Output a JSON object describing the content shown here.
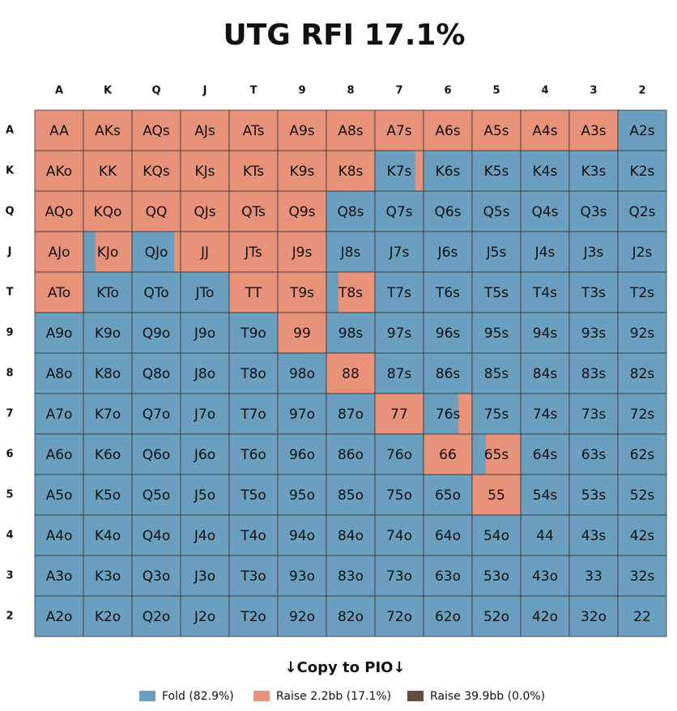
{
  "title": "UTG RFI 17.1%",
  "columns": [
    "A",
    "K",
    "Q",
    "J",
    "T",
    "9",
    "8",
    "7",
    "6",
    "5",
    "4",
    "3",
    "2"
  ],
  "rows": [
    "A",
    "K",
    "Q",
    "J",
    "T",
    "9",
    "8",
    "7",
    "6",
    "5",
    "4",
    "3",
    "2"
  ],
  "hands": [
    [
      "AA",
      "AKs",
      "AQs",
      "AJs",
      "ATs",
      "A9s",
      "A8s",
      "A7s",
      "A6s",
      "A5s",
      "A4s",
      "A3s",
      "A2s"
    ],
    [
      "AKo",
      "KK",
      "KQs",
      "KJs",
      "KTs",
      "K9s",
      "K8s",
      "K7s",
      "K6s",
      "K5s",
      "K4s",
      "K3s",
      "K2s"
    ],
    [
      "AQo",
      "KQo",
      "QQ",
      "QJs",
      "QTs",
      "Q9s",
      "Q8s",
      "Q7s",
      "Q6s",
      "Q5s",
      "Q4s",
      "Q3s",
      "Q2s"
    ],
    [
      "AJo",
      "KJo",
      "QJo",
      "JJ",
      "JTs",
      "J9s",
      "J8s",
      "J7s",
      "J6s",
      "J5s",
      "J4s",
      "J3s",
      "J2s"
    ],
    [
      "ATo",
      "KTo",
      "QTo",
      "JTo",
      "TT",
      "T9s",
      "T8s",
      "T7s",
      "T6s",
      "T5s",
      "T4s",
      "T3s",
      "T2s"
    ],
    [
      "A9o",
      "K9o",
      "Q9o",
      "J9o",
      "T9o",
      "99",
      "98s",
      "97s",
      "96s",
      "95s",
      "94s",
      "93s",
      "92s"
    ],
    [
      "A8o",
      "K8o",
      "Q8o",
      "J8o",
      "T8o",
      "98o",
      "88",
      "87s",
      "86s",
      "85s",
      "84s",
      "83s",
      "82s"
    ],
    [
      "A7o",
      "K7o",
      "Q7o",
      "J7o",
      "T7o",
      "97o",
      "87o",
      "77",
      "76s",
      "75s",
      "74s",
      "73s",
      "72s"
    ],
    [
      "A6o",
      "K6o",
      "Q6o",
      "J6o",
      "T6o",
      "96o",
      "86o",
      "76o",
      "66",
      "65s",
      "64s",
      "63s",
      "62s"
    ],
    [
      "A5o",
      "K5o",
      "Q5o",
      "J5o",
      "T5o",
      "95o",
      "85o",
      "75o",
      "65o",
      "55",
      "54s",
      "53s",
      "52s"
    ],
    [
      "A4o",
      "K4o",
      "Q4o",
      "J4o",
      "T4o",
      "94o",
      "84o",
      "74o",
      "64o",
      "54o",
      "44",
      "43s",
      "42s"
    ],
    [
      "A3o",
      "K3o",
      "Q3o",
      "J3o",
      "T3o",
      "93o",
      "83o",
      "73o",
      "63o",
      "53o",
      "43o",
      "33",
      "32s"
    ],
    [
      "A2o",
      "K2o",
      "Q2o",
      "J2o",
      "T2o",
      "92o",
      "82o",
      "72o",
      "62o",
      "52o",
      "42o",
      "32o",
      "22"
    ]
  ],
  "raise": [
    [
      1,
      1,
      1,
      1,
      1,
      1,
      1,
      1,
      1,
      1,
      1,
      1,
      0
    ],
    [
      1,
      1,
      1,
      1,
      1,
      1,
      1,
      0.17,
      0,
      0,
      0,
      0,
      0
    ],
    [
      1,
      1,
      1,
      1,
      1,
      1,
      0,
      0,
      0,
      0,
      0,
      0,
      0
    ],
    [
      1,
      0.75,
      0.13,
      1,
      1,
      1,
      0,
      0,
      0,
      0,
      0,
      0,
      0
    ],
    [
      1,
      0,
      0,
      0,
      1,
      1,
      0.75,
      0,
      0,
      0,
      0,
      0,
      0
    ],
    [
      0,
      0,
      0,
      0,
      0,
      1,
      0,
      0,
      0,
      0,
      0,
      0,
      0
    ],
    [
      0,
      0,
      0,
      0,
      0,
      0,
      1,
      0,
      0,
      0,
      0,
      0,
      0
    ],
    [
      0,
      0,
      0,
      0,
      0,
      0,
      0,
      1,
      0.28,
      0,
      0,
      0,
      0
    ],
    [
      0,
      0,
      0,
      0,
      0,
      0,
      0,
      0,
      1,
      0.72,
      0,
      0,
      0
    ],
    [
      0,
      0,
      0,
      0,
      0,
      0,
      0,
      0,
      0,
      1,
      0,
      0,
      0
    ],
    [
      0,
      0,
      0,
      0,
      0,
      0,
      0,
      0,
      0,
      0,
      0,
      0,
      0
    ],
    [
      0,
      0,
      0,
      0,
      0,
      0,
      0,
      0,
      0,
      0,
      0,
      0,
      0
    ],
    [
      0,
      0,
      0,
      0,
      0,
      0,
      0,
      0,
      0,
      0,
      0,
      0,
      0
    ]
  ],
  "fold_color": "#6a9fbf",
  "raise_color": "#e8927a",
  "copy_button": "↓Copy to PIO↓",
  "legend": [
    {
      "label": "Fold (82.9%)",
      "color": "#6a9fbf"
    },
    {
      "label": "Raise 2.2bb (17.1%)",
      "color": "#e8927a"
    },
    {
      "label": "Raise 39.9bb (0.0%)",
      "color": "#6b4a3f"
    }
  ]
}
